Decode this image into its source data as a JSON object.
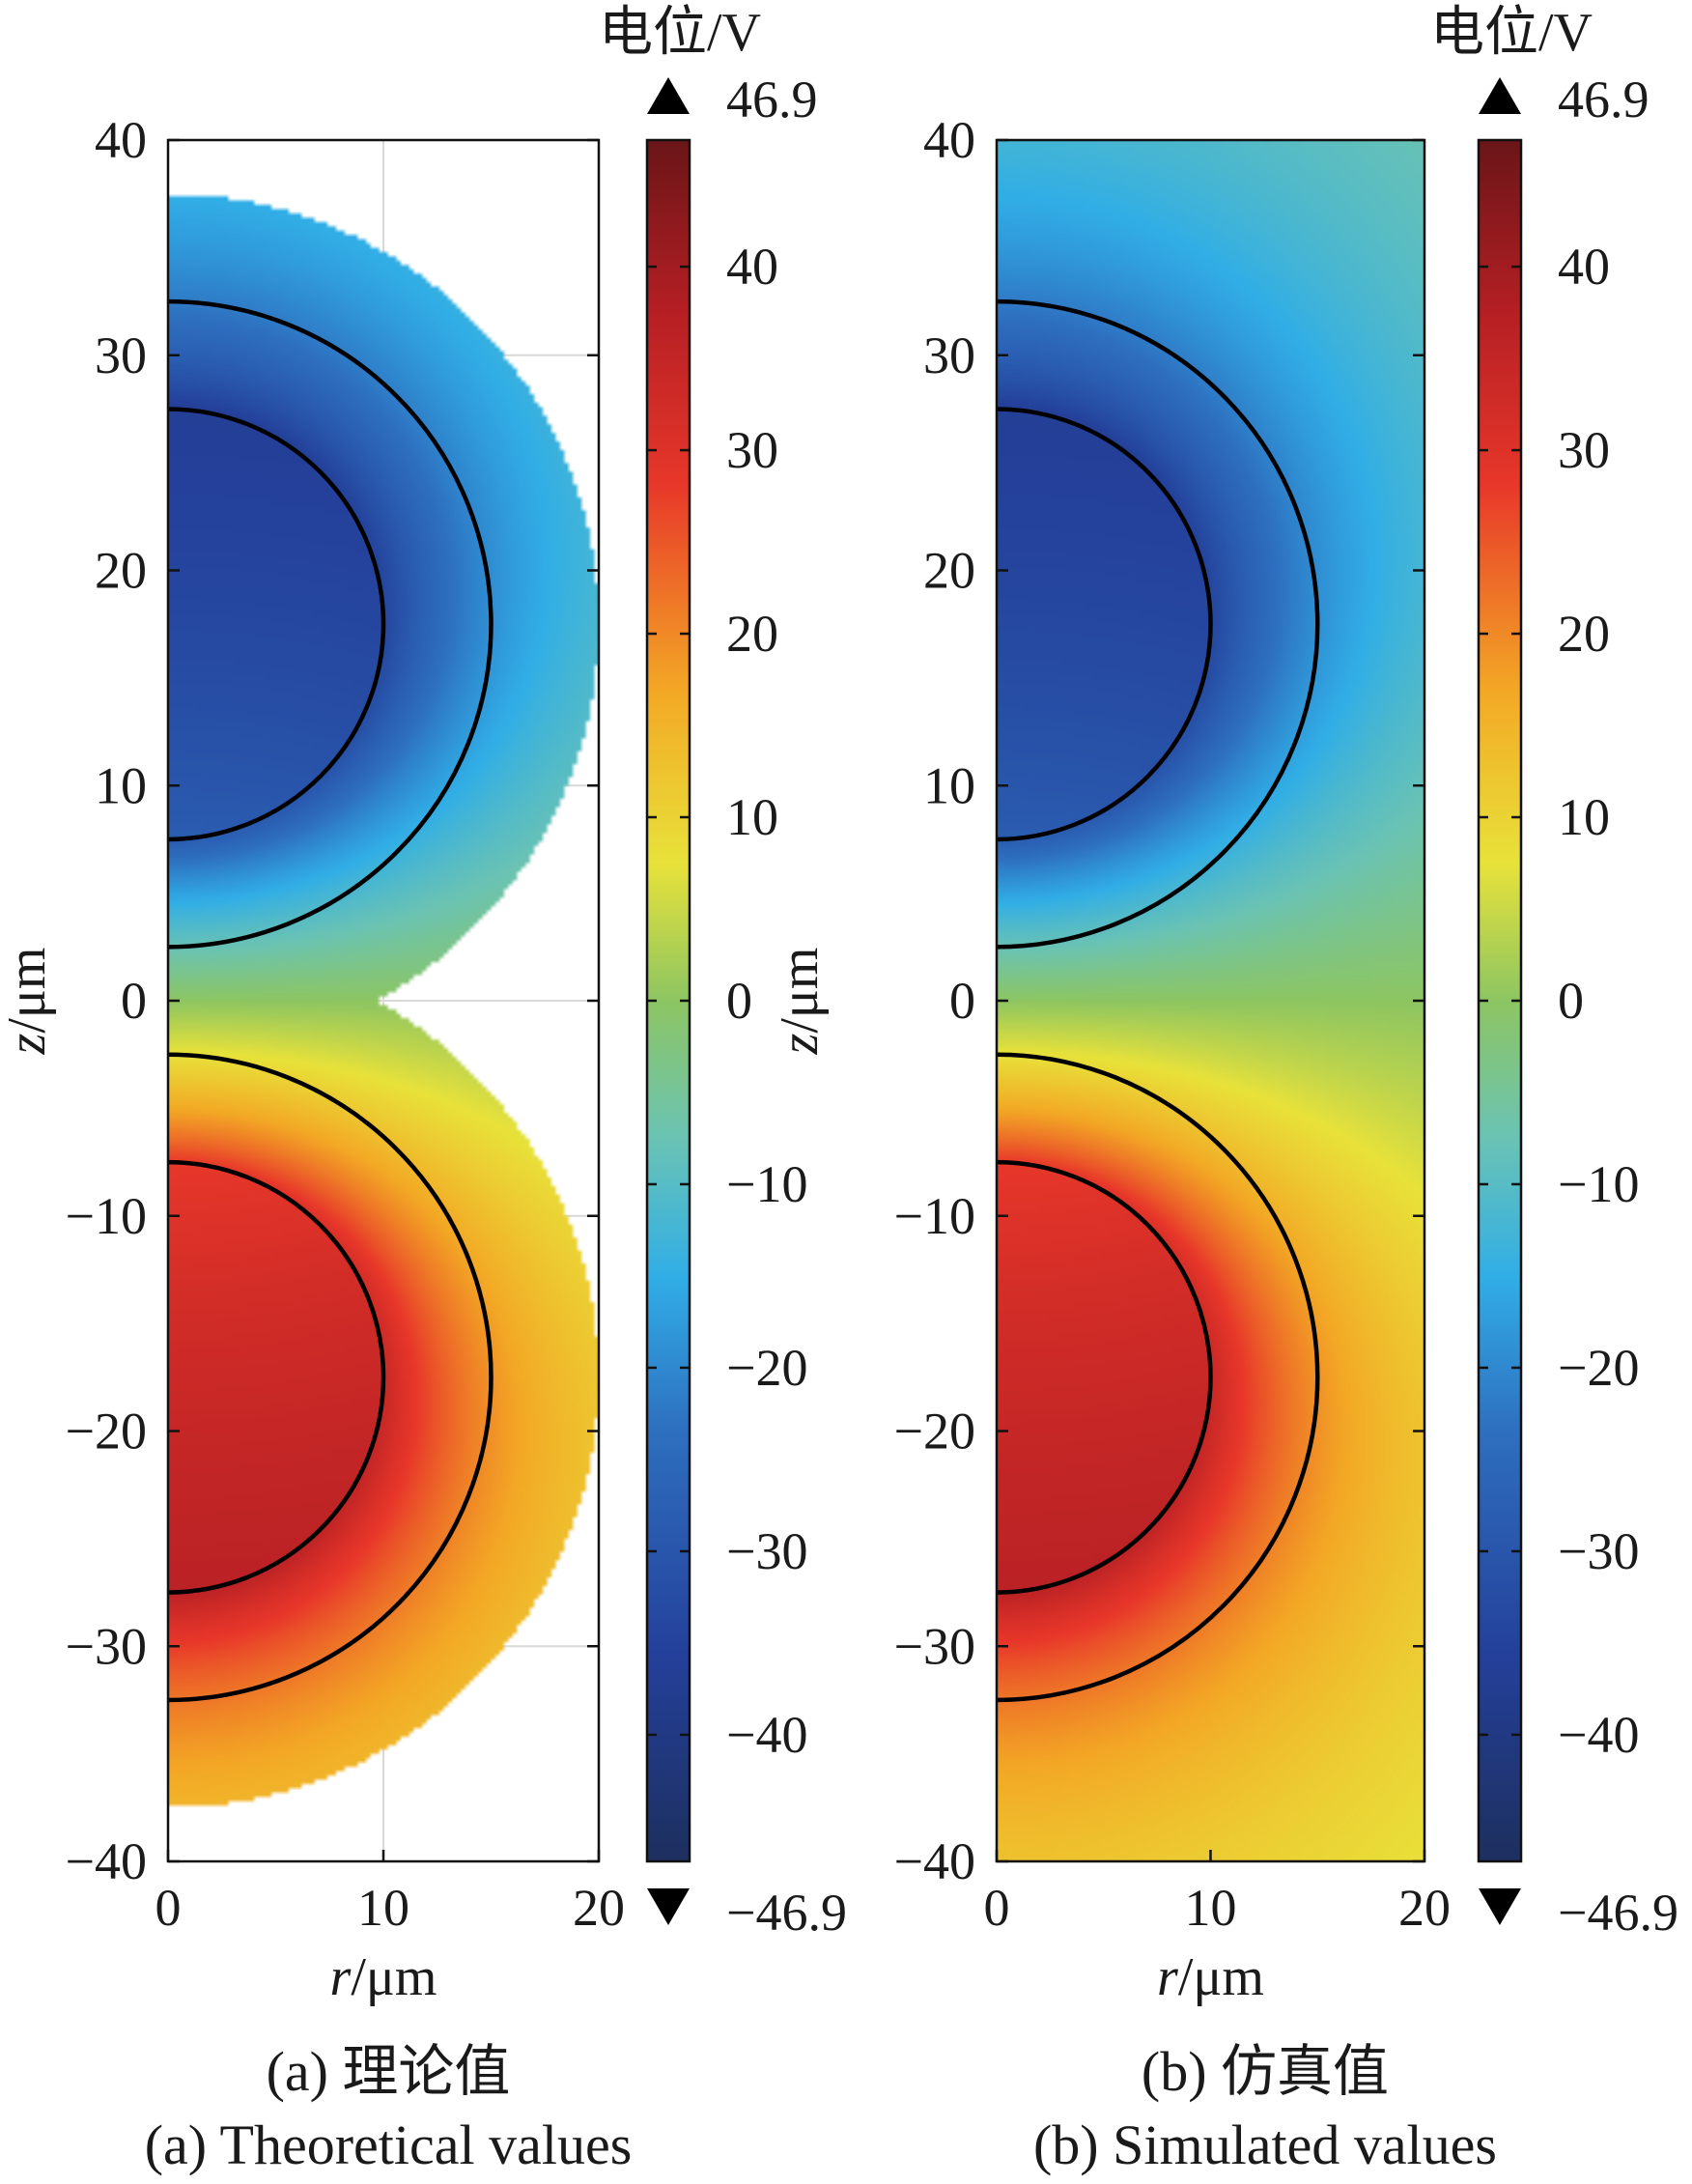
{
  "chart_data": [
    {
      "type": "heatmap",
      "panel": "a",
      "caption_zh": "(a) 理论值",
      "caption_en": "(a) Theoretical values",
      "xlabel_var": "r",
      "ylabel_var": "z",
      "unit": "/μm",
      "xlim": [
        0,
        20
      ],
      "ylim": [
        -40,
        40
      ],
      "xticks": [
        "0",
        "10",
        "20"
      ],
      "yticks": [
        "40",
        "30",
        "20",
        "10",
        "0",
        "−10",
        "−20",
        "−30",
        "−40"
      ],
      "grid": true,
      "domain_shape": "two hemispheres",
      "upper_region": {
        "center_z": 17.5,
        "radius": 20
      },
      "lower_region": {
        "center_z": -17.5,
        "radius": 20
      },
      "contour_circles": [
        {
          "center_z": 17.5,
          "radius": 10
        },
        {
          "center_z": 17.5,
          "radius": 15
        },
        {
          "center_z": -17.5,
          "radius": 10
        },
        {
          "center_z": -17.5,
          "radius": 15
        }
      ],
      "colorbar": {
        "title": "电位/V",
        "min": -46.9,
        "max": 46.9,
        "min_label": "−46.9",
        "max_label": "46.9",
        "ticks": [
          "40",
          "30",
          "20",
          "10",
          "0",
          "−10",
          "−20",
          "−30",
          "−40"
        ]
      }
    },
    {
      "type": "heatmap",
      "panel": "b",
      "caption_zh": "(b) 仿真值",
      "caption_en": "(b) Simulated values",
      "xlabel_var": "r",
      "ylabel_var": "z",
      "unit": "/μm",
      "xlim": [
        0,
        20
      ],
      "ylim": [
        -40,
        40
      ],
      "xticks": [
        "0",
        "10",
        "20"
      ],
      "yticks": [
        "40",
        "30",
        "20",
        "10",
        "0",
        "−10",
        "−20",
        "−30",
        "−40"
      ],
      "grid": false,
      "domain_shape": "full rectangle",
      "contour_circles": [
        {
          "center_z": 17.5,
          "radius": 10
        },
        {
          "center_z": 17.5,
          "radius": 15
        },
        {
          "center_z": -17.5,
          "radius": 10
        },
        {
          "center_z": -17.5,
          "radius": 15
        }
      ],
      "colorbar": {
        "title": "电位/V",
        "min": -46.9,
        "max": 46.9,
        "min_label": "−46.9",
        "max_label": "46.9",
        "ticks": [
          "40",
          "30",
          "20",
          "10",
          "0",
          "−10",
          "−20",
          "−30",
          "−40"
        ]
      }
    }
  ],
  "colormap_stops": [
    {
      "t": 0.0,
      "color": "#1d2f5e"
    },
    {
      "t": 0.12,
      "color": "#24409a"
    },
    {
      "t": 0.25,
      "color": "#2e6fc0"
    },
    {
      "t": 0.34,
      "color": "#31aee6"
    },
    {
      "t": 0.42,
      "color": "#6ac3b4"
    },
    {
      "t": 0.5,
      "color": "#8dc562"
    },
    {
      "t": 0.58,
      "color": "#e8e23a"
    },
    {
      "t": 0.68,
      "color": "#f3a825"
    },
    {
      "t": 0.8,
      "color": "#e8372a"
    },
    {
      "t": 0.9,
      "color": "#b51f24"
    },
    {
      "t": 1.0,
      "color": "#6a1518"
    }
  ]
}
